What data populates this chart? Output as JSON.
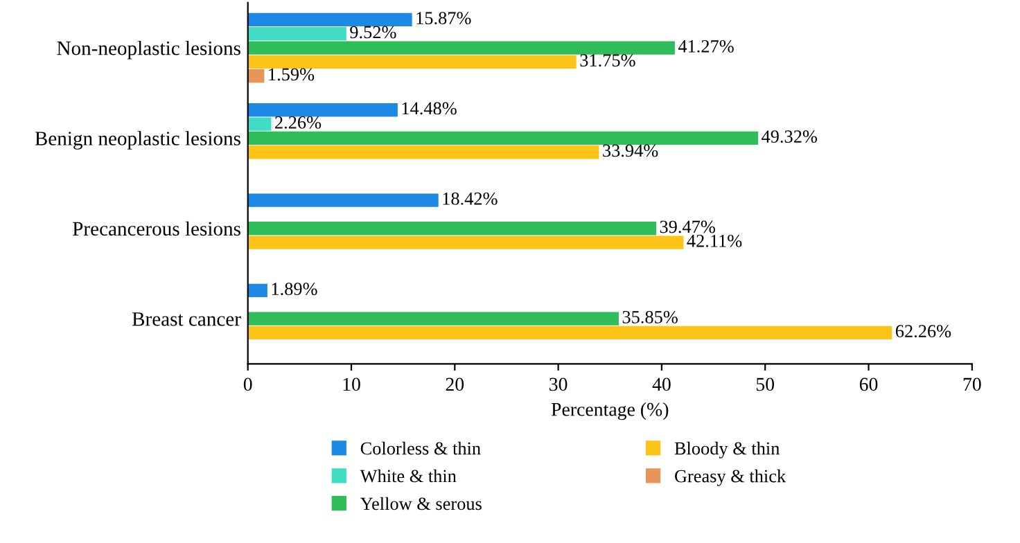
{
  "chart_data": {
    "type": "bar",
    "orientation": "horizontal",
    "xlabel": "Percentage (%)",
    "categories": [
      "Non-neoplastic lesions",
      "Benign neoplastic lesions",
      "Precancerous lesions",
      "Breast cancer"
    ],
    "series": [
      {
        "name": "Colorless & thin",
        "color": "#1e88e5",
        "values": [
          15.87,
          14.48,
          18.42,
          1.89
        ],
        "value_labels": [
          "15.87%",
          "14.48%",
          "18.42%",
          "1.89%"
        ]
      },
      {
        "name": "White & thin",
        "color": "#40dcc4",
        "values": [
          9.52,
          2.26,
          null,
          null
        ],
        "value_labels": [
          "9.52%",
          "2.26%",
          null,
          null
        ]
      },
      {
        "name": "Yellow & serous",
        "color": "#2ebd59",
        "values": [
          41.27,
          49.32,
          39.47,
          35.85
        ],
        "value_labels": [
          "41.27%",
          "49.32%",
          "39.47%",
          "35.85%"
        ]
      },
      {
        "name": "Bloody & thin",
        "color": "#fcc419",
        "values": [
          31.75,
          33.94,
          42.11,
          62.26
        ],
        "value_labels": [
          "31.75%",
          "33.94%",
          "42.11%",
          "62.26%"
        ]
      },
      {
        "name": "Greasy & thick",
        "color": "#e8955a",
        "values": [
          1.59,
          null,
          null,
          null
        ],
        "value_labels": [
          "1.59%",
          null,
          null,
          null
        ]
      }
    ],
    "xlim": [
      0,
      70
    ],
    "xticks": [
      0,
      10,
      20,
      30,
      40,
      50,
      60,
      70
    ],
    "legend": "bottom",
    "grid": false
  }
}
